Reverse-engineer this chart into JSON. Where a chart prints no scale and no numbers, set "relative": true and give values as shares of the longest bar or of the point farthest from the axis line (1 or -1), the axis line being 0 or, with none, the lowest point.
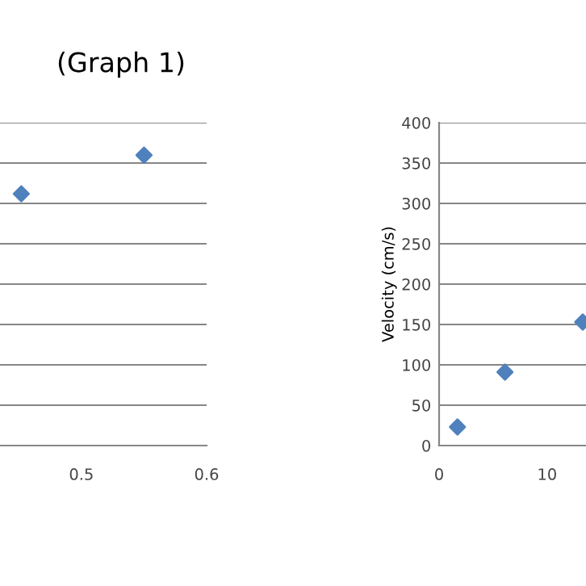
{
  "chart_data": [
    {
      "type": "scatter",
      "title": "(Graph 1)",
      "relative": true,
      "x": [
        0.452,
        0.55
      ],
      "values": [
        0.867,
        1
      ],
      "color": "#4f81bd",
      "marker": "diamond",
      "xlim": [
        0.435,
        0.6
      ],
      "xticks": [
        0.5,
        0.6
      ],
      "grid": "y",
      "tick_labels": "x"
    },
    {
      "type": "scatter",
      "ylabel": "Velocity (cm/s)",
      "x": [
        1.7,
        6.1,
        13.3
      ],
      "values": [
        23,
        91,
        153
      ],
      "color": "#4f81bd",
      "marker": "diamond",
      "xlim": [
        0,
        13.6
      ],
      "xticks": [
        0,
        10
      ],
      "ylim": [
        0,
        400
      ],
      "yticks": [
        0,
        50,
        100,
        150,
        200,
        250,
        300,
        350,
        400
      ],
      "grid": "y"
    }
  ]
}
